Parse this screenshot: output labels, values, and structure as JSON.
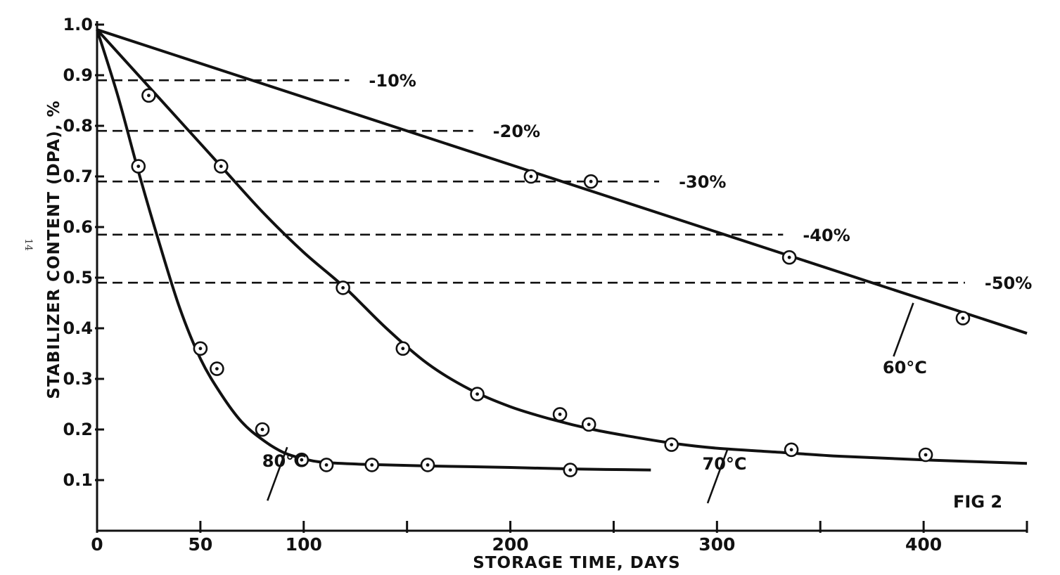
{
  "chart_data": {
    "type": "line",
    "xlabel": "STORAGE TIME, DAYS",
    "ylabel": "STABILIZER CONTENT (DPA), %",
    "xlim": [
      0,
      450
    ],
    "ylim": [
      0,
      1.0
    ],
    "x_major_ticks": [
      0,
      100,
      200,
      300,
      400
    ],
    "x_minor_ticks": [
      50,
      150,
      250,
      350,
      450
    ],
    "x_tick_labels": [
      "0",
      "50",
      "100",
      "200",
      "300",
      "400"
    ],
    "x_tick_label_values": [
      0,
      50,
      100,
      200,
      300,
      400
    ],
    "y_ticks": [
      0.1,
      0.2,
      0.3,
      0.4,
      0.5,
      0.6,
      0.7,
      0.8,
      0.9,
      1.0
    ],
    "y_tick_labels": [
      "0.1",
      "0.2",
      "0.3",
      "0.4",
      "0.5",
      "0.6",
      "0.7",
      "0.8",
      "0.9",
      "1.0"
    ],
    "grid": false,
    "annotation": "FIG 2",
    "margin_text": "14",
    "reference_lines": [
      {
        "label": "-10%",
        "y": 0.89,
        "x_end": 122
      },
      {
        "label": "-20%",
        "y": 0.79,
        "x_end": 182
      },
      {
        "label": "-30%",
        "y": 0.69,
        "x_end": 272
      },
      {
        "label": "-40%",
        "y": 0.585,
        "x_end": 332
      },
      {
        "label": "-50%",
        "y": 0.49,
        "x_end": 420
      }
    ],
    "series": [
      {
        "name": "60°C",
        "curve": {
          "x": [
            0,
            450
          ],
          "y": [
            0.99,
            0.39
          ]
        },
        "points": {
          "x": [
            210,
            239,
            335,
            419
          ],
          "y": [
            0.7,
            0.69,
            0.54,
            0.42
          ]
        },
        "label_anchor": {
          "x": 395,
          "y": 0.45
        }
      },
      {
        "name": "70°C",
        "curve": {
          "x": [
            0,
            20,
            40,
            60,
            80,
            100,
            120,
            140,
            160,
            180,
            200,
            220,
            240,
            260,
            280,
            300,
            330,
            360,
            400,
            450
          ],
          "y": [
            0.99,
            0.9,
            0.81,
            0.72,
            0.63,
            0.55,
            0.48,
            0.4,
            0.33,
            0.28,
            0.245,
            0.22,
            0.2,
            0.185,
            0.172,
            0.163,
            0.155,
            0.147,
            0.14,
            0.133
          ]
        },
        "points": {
          "x": [
            25,
            60,
            119,
            148,
            184,
            224,
            238,
            278,
            336,
            401
          ],
          "y": [
            0.86,
            0.72,
            0.48,
            0.36,
            0.27,
            0.23,
            0.21,
            0.17,
            0.16,
            0.15
          ]
        },
        "label_anchor": {
          "x": 305,
          "y": 0.16
        }
      },
      {
        "name": "80°C",
        "curve": {
          "x": [
            0,
            10,
            20,
            30,
            40,
            50,
            60,
            70,
            80,
            90,
            100,
            110,
            130,
            160,
            200,
            230,
            268
          ],
          "y": [
            0.99,
            0.86,
            0.71,
            0.57,
            0.44,
            0.34,
            0.27,
            0.215,
            0.18,
            0.155,
            0.142,
            0.135,
            0.131,
            0.128,
            0.125,
            0.122,
            0.12
          ]
        },
        "points": {
          "x": [
            20,
            50,
            58,
            80,
            99,
            111,
            133,
            160,
            229
          ],
          "y": [
            0.72,
            0.36,
            0.32,
            0.2,
            0.14,
            0.13,
            0.13,
            0.13,
            0.12
          ]
        },
        "label_anchor": {
          "x": 92,
          "y": 0.165
        }
      }
    ]
  }
}
